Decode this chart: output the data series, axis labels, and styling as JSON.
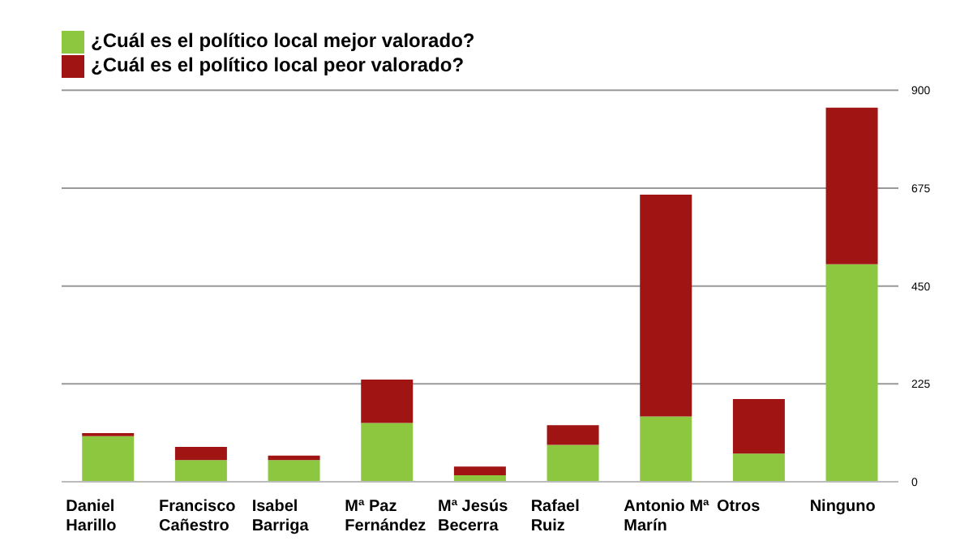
{
  "chart_data": {
    "type": "bar",
    "stacked": true,
    "categories": [
      "Daniel Harillo",
      "Francisco Cañestro",
      "Isabel Barriga",
      "Mª Paz Fernández",
      "Mª Jesús Becerra",
      "Rafael Ruiz",
      "Antonio Mª Marín",
      "Otros",
      "Ninguno"
    ],
    "series": [
      {
        "name": "¿Cuál es el político local mejor valorado?",
        "color": "#8dc63f",
        "values": [
          105,
          50,
          50,
          135,
          15,
          85,
          150,
          65,
          500
        ]
      },
      {
        "name": "¿Cuál es el político local peor valorado?",
        "color": "#a01414",
        "values": [
          7,
          30,
          10,
          100,
          20,
          45,
          510,
          125,
          360
        ]
      }
    ],
    "ylim": [
      0,
      900
    ],
    "yticks": [
      0,
      225,
      450,
      675,
      900
    ],
    "grid": "y",
    "legend": "top"
  }
}
